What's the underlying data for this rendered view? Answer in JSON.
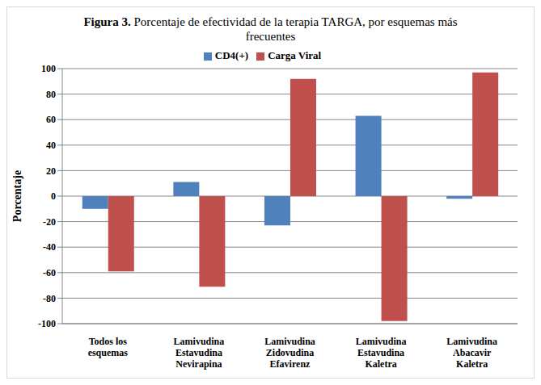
{
  "chart_data": {
    "type": "bar",
    "title": "Figura 3. Porcentaje de efectividad de la terapia TARGA, por esquemas más frecuentes",
    "categories": [
      "Todos los\nesquemas",
      "Lamivudina\nEstavudina\nNevirapina",
      "Lamivudina\nZidovudina\nEfavirenz",
      "Lamivudina\nEstavudina\nKaletra",
      "Lamivudina\nAbacavir\nKaletra"
    ],
    "series": [
      {
        "name": "CD4(+)",
        "color": "#4f81bd",
        "values": [
          -10,
          11,
          -23,
          63,
          -2
        ]
      },
      {
        "name": "Carga Viral",
        "color": "#c0504d",
        "values": [
          -59,
          -71,
          92,
          -98,
          97
        ]
      }
    ],
    "y_label": "Porcentaje",
    "ylim": [
      -100,
      100
    ],
    "yticks": [
      -100,
      -80,
      -60,
      -40,
      -20,
      0,
      20,
      40,
      60,
      80,
      100
    ],
    "grid": true,
    "legend": "top"
  }
}
